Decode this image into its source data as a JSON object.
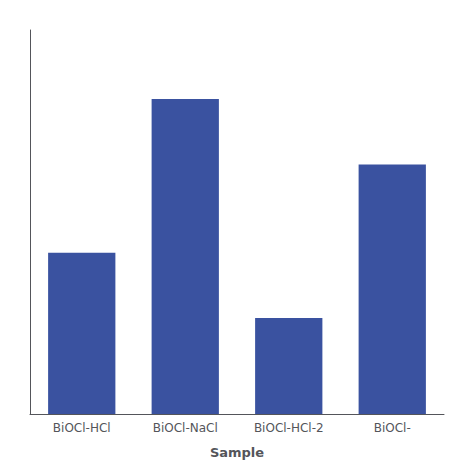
{
  "chart_data": {
    "type": "bar",
    "categories": [
      "BiOCl-HCl",
      "BiOCl-NaCl",
      "BiOCl-HCl-2",
      "BiOCl-"
    ],
    "values": [
      42,
      82,
      25,
      65
    ],
    "color": "#3A52A0",
    "xlabel": "Sample",
    "ylim": [
      0,
      100
    ],
    "grid": false,
    "tick_labels": "x"
  }
}
